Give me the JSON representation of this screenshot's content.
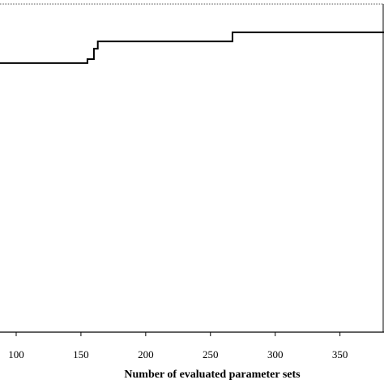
{
  "chart_data": {
    "type": "line",
    "x_label": "Number of evaluated parameter sets",
    "x": [
      87.5,
      155,
      155,
      160,
      160,
      163,
      163,
      166,
      166,
      267,
      267,
      384
    ],
    "series": [
      {
        "color": "#000000",
        "values": [
          0.82,
          0.82,
          0.832,
          0.832,
          0.864,
          0.864,
          0.886,
          0.886,
          0.886,
          0.886,
          0.914,
          0.914
        ]
      }
    ],
    "xlim": [
      87.5,
      384
    ],
    "xticks": [
      100,
      150,
      200,
      250,
      300,
      350
    ],
    "ylim": [
      0,
      1
    ]
  }
}
